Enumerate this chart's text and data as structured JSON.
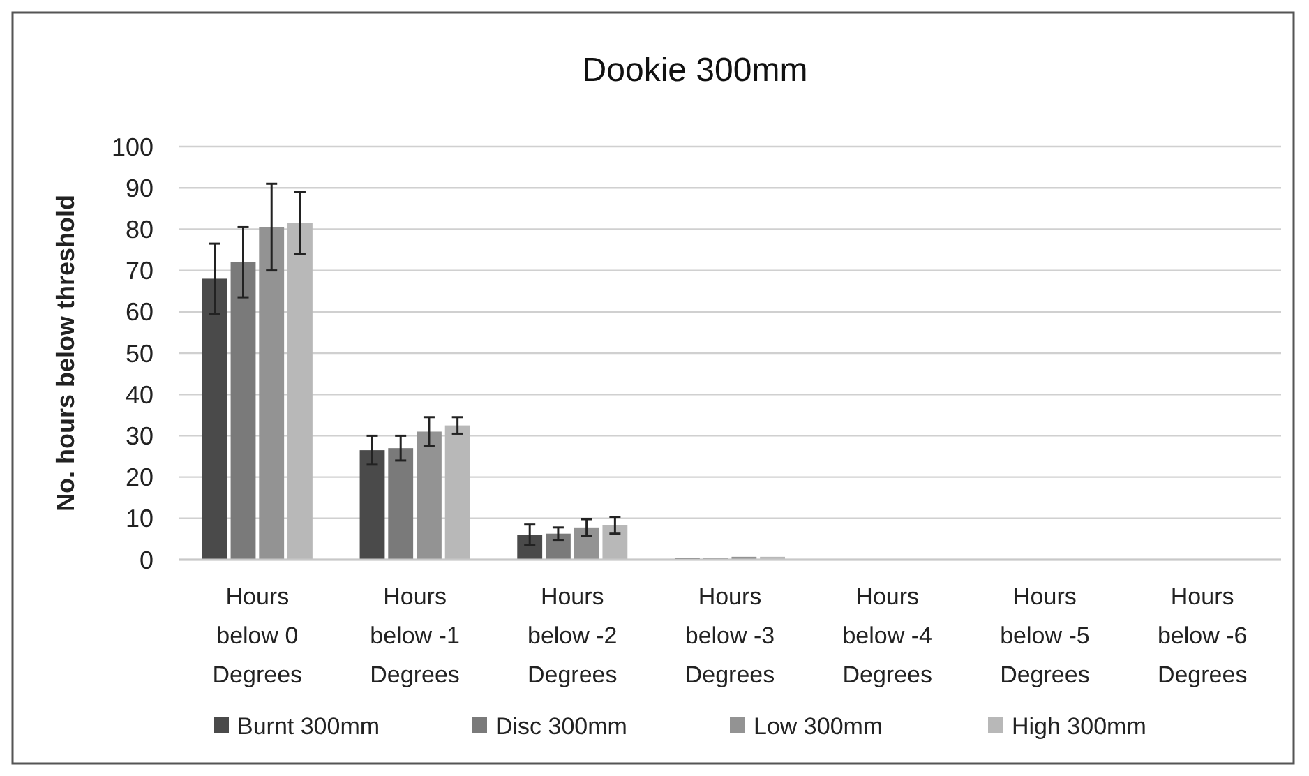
{
  "chart_data": {
    "type": "bar",
    "title": "Dookie 300mm",
    "ylabel": "No. hours below threshold",
    "categories": [
      "Hours\nbelow 0\nDegrees",
      "Hours\nbelow -1\nDegrees",
      "Hours\nbelow -2\nDegrees",
      "Hours\nbelow -3\nDegrees",
      "Hours\nbelow -4\nDegrees",
      "Hours\nbelow -5\nDegrees",
      "Hours\nbelow -6\nDegrees"
    ],
    "series": [
      {
        "name": "Burnt 300mm",
        "color": "#4a4a4a",
        "values": [
          68,
          26.5,
          6,
          0.3,
          0,
          0,
          0
        ],
        "errors": [
          8.5,
          3.5,
          2.5,
          null,
          null,
          null,
          null
        ]
      },
      {
        "name": "Disc 300mm",
        "color": "#7a7a7a",
        "values": [
          72,
          27,
          6.3,
          0.3,
          0,
          0,
          0
        ],
        "errors": [
          8.5,
          3,
          1.5,
          null,
          null,
          null,
          null
        ]
      },
      {
        "name": "Low 300mm",
        "color": "#939393",
        "values": [
          80.5,
          31,
          7.8,
          0.7,
          0,
          0,
          0
        ],
        "errors": [
          10.5,
          3.5,
          2,
          null,
          null,
          null,
          null
        ]
      },
      {
        "name": "High 300mm",
        "color": "#b8b8b8",
        "values": [
          81.5,
          32.5,
          8.3,
          0.7,
          0,
          0,
          0
        ],
        "errors": [
          7.5,
          2,
          2,
          null,
          null,
          null,
          null
        ]
      }
    ],
    "ylim": [
      0,
      100
    ],
    "yticks": [
      0,
      10,
      20,
      30,
      40,
      50,
      60,
      70,
      80,
      90,
      100
    ],
    "grid": "y",
    "legend": "bottom"
  }
}
